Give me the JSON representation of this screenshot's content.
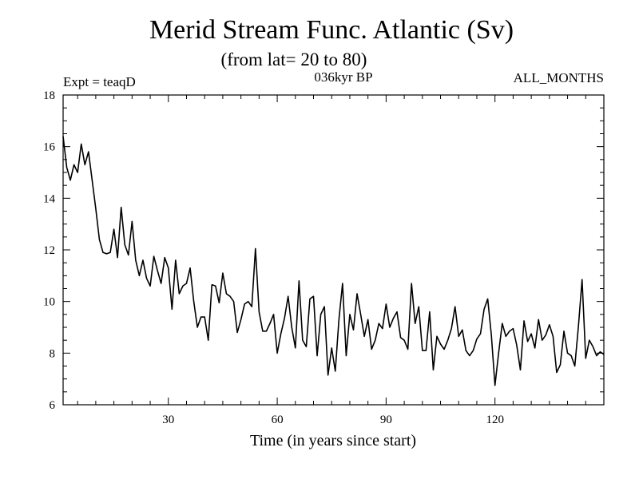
{
  "chart_data": {
    "type": "line",
    "title": "Merid Stream Func. Atlantic (Sv)",
    "subtitle": "(from lat= 20 to 80)",
    "experiment": "Expt = teaqD",
    "period": "036kyr BP",
    "months": "ALL_MONTHS",
    "xlabel": "Time (in years since start)",
    "ylabel": "",
    "xlim": [
      1,
      150
    ],
    "ylim": [
      6,
      18
    ],
    "x_ticks": [
      30,
      60,
      90,
      120
    ],
    "y_ticks": [
      6,
      8,
      10,
      12,
      14,
      16,
      18
    ],
    "grid": false,
    "series": [
      {
        "name": "Merid Stream Func. Atlantic",
        "color": "#000000",
        "x": [
          1,
          2,
          3,
          4,
          5,
          6,
          7,
          8,
          9,
          10,
          11,
          12,
          13,
          14,
          15,
          16,
          17,
          18,
          19,
          20,
          21,
          22,
          23,
          24,
          25,
          26,
          27,
          28,
          29,
          30,
          31,
          32,
          33,
          34,
          35,
          36,
          37,
          38,
          39,
          40,
          41,
          42,
          43,
          44,
          45,
          46,
          47,
          48,
          49,
          50,
          51,
          52,
          53,
          54,
          55,
          56,
          57,
          58,
          59,
          60,
          61,
          62,
          63,
          64,
          65,
          66,
          67,
          68,
          69,
          70,
          71,
          72,
          73,
          74,
          75,
          76,
          77,
          78,
          79,
          80,
          81,
          82,
          83,
          84,
          85,
          86,
          87,
          88,
          89,
          90,
          91,
          92,
          93,
          94,
          95,
          96,
          97,
          98,
          99,
          100,
          101,
          102,
          103,
          104,
          105,
          106,
          107,
          108,
          109,
          110,
          111,
          112,
          113,
          114,
          115,
          116,
          117,
          118,
          119,
          120,
          121,
          122,
          123,
          124,
          125,
          126,
          127,
          128,
          129,
          130,
          131,
          132,
          133,
          134,
          135,
          136,
          137,
          138,
          139,
          140,
          141,
          142,
          143,
          144,
          145,
          146,
          147,
          148,
          149,
          150
        ],
        "values": [
          16.4,
          15.2,
          14.7,
          15.3,
          15.0,
          16.1,
          15.3,
          15.8,
          14.7,
          13.6,
          12.4,
          11.9,
          11.85,
          11.9,
          12.8,
          11.7,
          13.65,
          12.2,
          11.8,
          13.1,
          11.6,
          11.0,
          11.6,
          10.9,
          10.6,
          11.75,
          11.2,
          10.7,
          11.7,
          11.3,
          9.7,
          11.6,
          10.3,
          10.6,
          10.7,
          11.3,
          10.0,
          9.0,
          9.4,
          9.4,
          8.5,
          10.65,
          10.6,
          9.95,
          11.1,
          10.3,
          10.2,
          10.0,
          8.8,
          9.3,
          9.9,
          10.0,
          9.8,
          12.05,
          9.6,
          8.85,
          8.85,
          9.15,
          9.5,
          8.0,
          8.75,
          9.35,
          10.2,
          9.0,
          8.2,
          10.8,
          8.5,
          8.25,
          10.1,
          10.2,
          7.9,
          9.5,
          9.8,
          7.15,
          8.2,
          7.3,
          9.3,
          10.7,
          7.9,
          9.5,
          8.9,
          10.3,
          9.5,
          8.65,
          9.3,
          8.15,
          8.5,
          9.15,
          8.95,
          9.9,
          9.0,
          9.35,
          9.6,
          8.6,
          8.5,
          8.15,
          10.7,
          9.15,
          9.8,
          8.1,
          8.1,
          9.6,
          7.35,
          8.65,
          8.35,
          8.15,
          8.5,
          8.95,
          9.8,
          8.65,
          8.9,
          8.1,
          7.9,
          8.1,
          8.55,
          8.75,
          9.7,
          10.1,
          8.7,
          6.75,
          8.0,
          9.15,
          8.65,
          8.85,
          8.95,
          8.3,
          7.35,
          9.25,
          8.45,
          8.75,
          8.2,
          9.3,
          8.5,
          8.7,
          9.1,
          8.65,
          7.25,
          7.55,
          8.85,
          8.0,
          7.9,
          7.5,
          9.05,
          10.85,
          7.8,
          8.5,
          8.25,
          7.9,
          8.05,
          7.95
        ]
      }
    ]
  }
}
